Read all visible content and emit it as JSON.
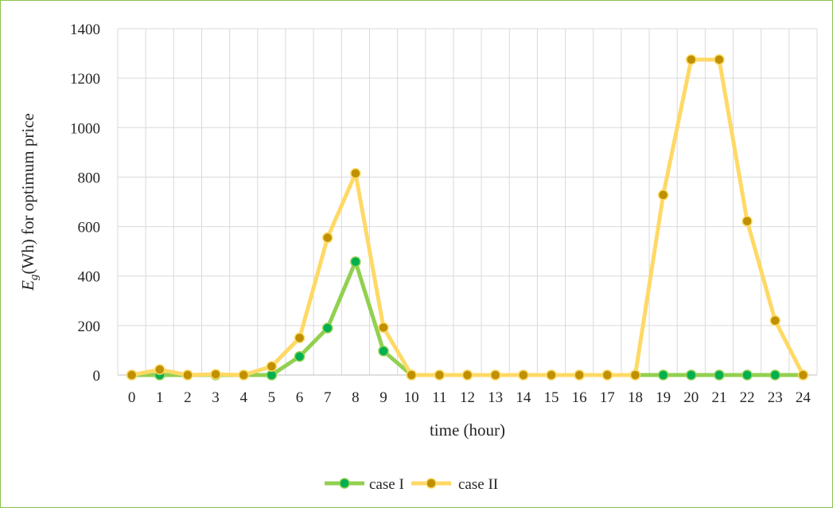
{
  "chart_data": {
    "type": "line",
    "xlabel": "time (hour)",
    "ylabel": {
      "var": "E",
      "sub": "g",
      "rest": "(Wh) for optimum price"
    },
    "x": [
      "0",
      "1",
      "2",
      "3",
      "4",
      "5",
      "6",
      "7",
      "8",
      "9",
      "10",
      "11",
      "12",
      "13",
      "14",
      "15",
      "16",
      "17",
      "18",
      "19",
      "20",
      "21",
      "22",
      "23",
      "24"
    ],
    "ylim": [
      0,
      1400
    ],
    "yticks": [
      "0",
      "200",
      "400",
      "600",
      "800",
      "1000",
      "1200",
      "1400"
    ],
    "grid": true,
    "legend_position": "bottom",
    "series": [
      {
        "name": "case I",
        "color": "#92d050",
        "marker_color": "#00b050",
        "values": [
          0,
          0,
          0,
          0,
          0,
          0,
          75,
          190,
          458,
          97,
          0,
          0,
          0,
          0,
          0,
          0,
          0,
          0,
          0,
          0,
          0,
          0,
          0,
          0,
          0
        ]
      },
      {
        "name": "case II",
        "color": "#ffd966",
        "marker_color": "#bf9000",
        "values": [
          0,
          22,
          0,
          3,
          0,
          35,
          150,
          555,
          815,
          192,
          0,
          0,
          0,
          0,
          0,
          0,
          0,
          0,
          0,
          728,
          1275,
          1275,
          622,
          220,
          0
        ]
      }
    ]
  }
}
